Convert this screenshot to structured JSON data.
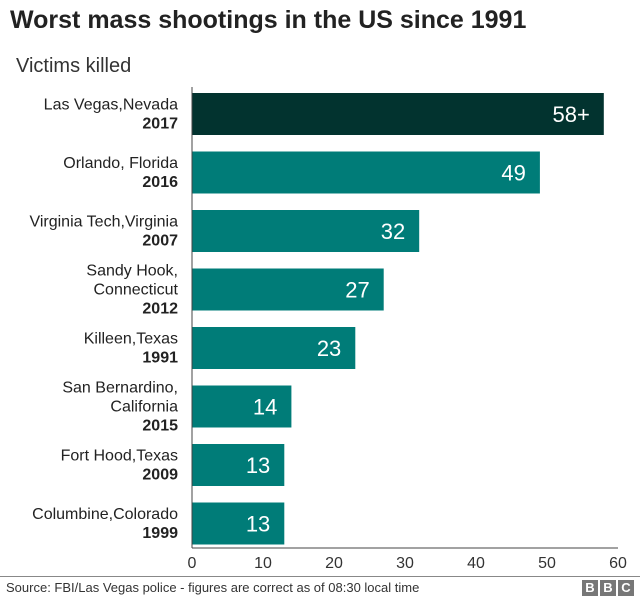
{
  "chart_data": {
    "type": "bar",
    "orientation": "horizontal",
    "title": "Worst mass shootings in the US since 1991",
    "subtitle": "Victims killed",
    "categories": [
      {
        "place": [
          "Las Vegas,Nevada"
        ],
        "year": "2017"
      },
      {
        "place": [
          "Orlando, Florida"
        ],
        "year": "2016"
      },
      {
        "place": [
          "Virginia Tech,Virginia"
        ],
        "year": "2007"
      },
      {
        "place": [
          "Sandy Hook,",
          "Connecticut"
        ],
        "year": "2012"
      },
      {
        "place": [
          "Killeen,Texas"
        ],
        "year": "1991"
      },
      {
        "place": [
          "San Bernardino,",
          "California"
        ],
        "year": "2015"
      },
      {
        "place": [
          "Fort Hood,Texas"
        ],
        "year": "2009"
      },
      {
        "place": [
          "Columbine,Colorado"
        ],
        "year": "1999"
      }
    ],
    "values": [
      58,
      49,
      32,
      27,
      23,
      14,
      13,
      13
    ],
    "data_labels": [
      "58+",
      "49",
      "32",
      "27",
      "23",
      "14",
      "13",
      "13"
    ],
    "xlim": [
      0,
      60
    ],
    "xticks": [
      "0",
      "10",
      "20",
      "30",
      "40",
      "50",
      "60"
    ],
    "grid": false,
    "colors": {
      "highlight": "#02332f",
      "bar": "#007c78"
    }
  },
  "footer": {
    "source": "Source: FBI/Las Vegas police - figures are correct as of 08:30 local time",
    "logo": [
      "B",
      "B",
      "C"
    ]
  }
}
